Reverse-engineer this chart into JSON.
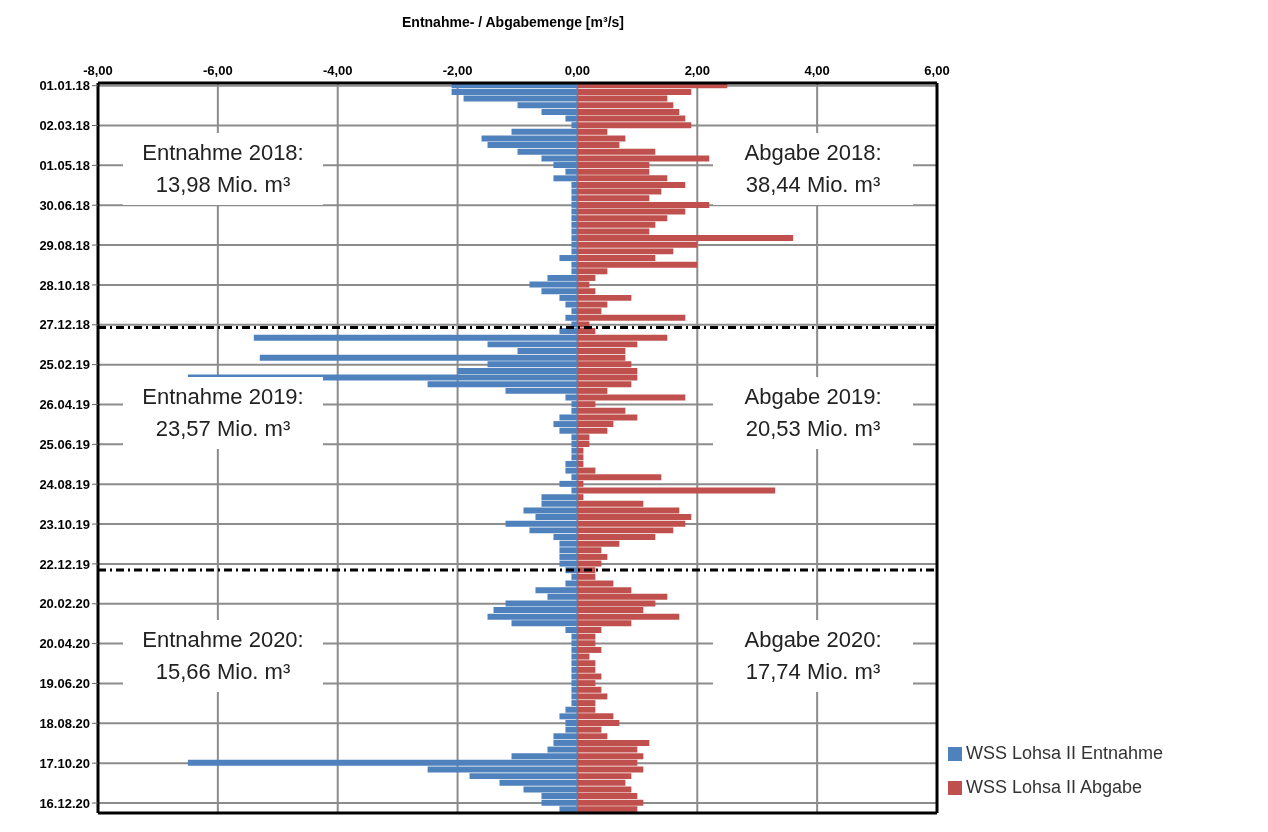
{
  "chart_data": {
    "type": "bar",
    "orientation": "horizontal",
    "xlabel": "Entnahme- / Abgabemenge [m³/s]",
    "x": [
      "2018-01-01",
      "2018-01-11",
      "2018-01-21",
      "2018-01-31",
      "2018-02-10",
      "2018-02-20",
      "2018-03-02",
      "2018-03-12",
      "2018-03-22",
      "2018-04-01",
      "2018-04-11",
      "2018-04-21",
      "2018-05-01",
      "2018-05-11",
      "2018-05-21",
      "2018-05-31",
      "2018-06-10",
      "2018-06-20",
      "2018-06-30",
      "2018-07-10",
      "2018-07-20",
      "2018-07-30",
      "2018-08-09",
      "2018-08-19",
      "2018-08-29",
      "2018-09-08",
      "2018-09-18",
      "2018-09-28",
      "2018-10-08",
      "2018-10-18",
      "2018-10-28",
      "2018-11-07",
      "2018-11-17",
      "2018-11-27",
      "2018-12-07",
      "2018-12-17",
      "2018-12-27",
      "2019-01-06",
      "2019-01-16",
      "2019-01-26",
      "2019-02-05",
      "2019-02-15",
      "2019-02-25",
      "2019-03-07",
      "2019-03-17",
      "2019-03-27",
      "2019-04-06",
      "2019-04-16",
      "2019-04-26",
      "2019-05-06",
      "2019-05-16",
      "2019-05-26",
      "2019-06-05",
      "2019-06-15",
      "2019-06-25",
      "2019-07-05",
      "2019-07-15",
      "2019-07-25",
      "2019-08-04",
      "2019-08-14",
      "2019-08-24",
      "2019-09-03",
      "2019-09-13",
      "2019-09-23",
      "2019-10-03",
      "2019-10-13",
      "2019-10-23",
      "2019-11-02",
      "2019-11-12",
      "2019-11-22",
      "2019-12-02",
      "2019-12-12",
      "2019-12-22",
      "2020-01-01",
      "2020-01-11",
      "2020-01-21",
      "2020-01-31",
      "2020-02-10",
      "2020-02-20",
      "2020-03-01",
      "2020-03-11",
      "2020-03-21",
      "2020-03-31",
      "2020-04-10",
      "2020-04-20",
      "2020-04-30",
      "2020-05-10",
      "2020-05-20",
      "2020-05-30",
      "2020-06-09",
      "2020-06-19",
      "2020-06-29",
      "2020-07-09",
      "2020-07-19",
      "2020-07-29",
      "2020-08-08",
      "2020-08-18",
      "2020-08-28",
      "2020-09-07",
      "2020-09-17",
      "2020-09-27",
      "2020-10-07",
      "2020-10-17",
      "2020-10-27",
      "2020-11-06",
      "2020-11-16",
      "2020-11-26",
      "2020-12-06",
      "2020-12-16",
      "2020-12-26"
    ],
    "series": [
      {
        "name": "WSS Lohsa II Entnahme",
        "color": "#4f81bd",
        "values": [
          -2.1,
          -2.1,
          -1.9,
          -1.0,
          -0.6,
          -0.2,
          -0.1,
          -1.1,
          -1.6,
          -1.5,
          -1.0,
          -0.6,
          -0.4,
          -0.2,
          -0.4,
          -0.1,
          -0.1,
          -0.1,
          -0.1,
          -0.1,
          -0.1,
          -0.1,
          -0.1,
          -0.1,
          -0.1,
          -0.1,
          -0.3,
          -0.1,
          -0.1,
          -0.5,
          -0.8,
          -0.6,
          -0.3,
          -0.2,
          -0.1,
          -0.2,
          -0.1,
          -0.3,
          -5.4,
          -1.5,
          -1.0,
          -5.3,
          -1.5,
          -2.0,
          -6.5,
          -2.5,
          -1.2,
          -0.2,
          -0.1,
          -0.1,
          -0.3,
          -0.4,
          -0.3,
          -0.1,
          -0.1,
          -0.1,
          -0.1,
          -0.2,
          -0.2,
          -0.1,
          -0.3,
          -0.1,
          -0.6,
          -0.6,
          -0.9,
          -0.7,
          -1.2,
          -0.8,
          -0.4,
          -0.3,
          -0.3,
          -0.3,
          -0.3,
          -0.2,
          -0.1,
          -0.2,
          -0.7,
          -0.5,
          -1.2,
          -1.4,
          -1.5,
          -1.1,
          -0.2,
          -0.1,
          -0.1,
          -0.1,
          -0.1,
          -0.1,
          -0.1,
          -0.1,
          -0.1,
          -0.1,
          -0.1,
          -0.1,
          -0.2,
          -0.3,
          -0.2,
          -0.2,
          -0.4,
          -0.4,
          -0.5,
          -1.1,
          -6.5,
          -2.5,
          -1.8,
          -1.3,
          -0.9,
          -0.6,
          -0.6,
          -0.3
        ]
      },
      {
        "name": "WSS Lohsa II Abgabe",
        "color": "#c0504d",
        "values": [
          2.5,
          1.9,
          1.5,
          1.6,
          1.7,
          1.8,
          1.9,
          0.5,
          0.8,
          0.7,
          1.3,
          2.2,
          1.2,
          1.2,
          1.5,
          1.8,
          1.4,
          1.2,
          2.2,
          1.8,
          1.5,
          1.3,
          1.2,
          3.6,
          2.0,
          1.6,
          1.3,
          2.0,
          0.5,
          0.3,
          0.2,
          0.3,
          0.9,
          0.5,
          0.4,
          1.8,
          0.2,
          0.3,
          1.5,
          1.0,
          0.8,
          0.8,
          0.9,
          1.0,
          1.0,
          0.9,
          0.5,
          1.8,
          0.3,
          0.8,
          1.0,
          0.6,
          0.5,
          0.2,
          0.2,
          0.1,
          0.1,
          0.1,
          0.3,
          1.4,
          0.1,
          3.3,
          0.1,
          1.1,
          1.7,
          1.9,
          1.8,
          1.6,
          1.3,
          0.7,
          0.4,
          0.5,
          0.4,
          0.3,
          0.3,
          0.6,
          0.9,
          1.5,
          1.3,
          1.1,
          1.7,
          0.9,
          0.4,
          0.3,
          0.3,
          0.4,
          0.2,
          0.3,
          0.3,
          0.4,
          0.3,
          0.4,
          0.5,
          0.3,
          0.3,
          0.6,
          0.7,
          0.4,
          0.5,
          1.2,
          1.0,
          1.1,
          1.0,
          1.1,
          0.9,
          0.8,
          0.9,
          1.0,
          1.1,
          1.0
        ]
      }
    ],
    "xlim": [
      -8,
      6
    ],
    "xticks": [
      {
        "value": -8,
        "label": "-8,00"
      },
      {
        "value": -6,
        "label": "-6,00"
      },
      {
        "value": -4,
        "label": "-4,00"
      },
      {
        "value": -2,
        "label": "-2,00"
      },
      {
        "value": 0,
        "label": "0,00"
      },
      {
        "value": 2,
        "label": "2,00"
      },
      {
        "value": 4,
        "label": "4,00"
      },
      {
        "value": 6,
        "label": "6,00"
      }
    ],
    "stacked": true,
    "ylim": [
      "2020-12-31",
      "2017-12-28"
    ],
    "yticks": [
      {
        "value": "2018-01-01",
        "label": "01.01.18"
      },
      {
        "value": "2018-03-02",
        "label": "02.03.18"
      },
      {
        "value": "2018-05-01",
        "label": "01.05.18"
      },
      {
        "value": "2018-06-30",
        "label": "30.06.18"
      },
      {
        "value": "2018-08-29",
        "label": "29.08.18"
      },
      {
        "value": "2018-10-28",
        "label": "28.10.18"
      },
      {
        "value": "2018-12-27",
        "label": "27.12.18"
      },
      {
        "value": "2019-02-25",
        "label": "25.02.19"
      },
      {
        "value": "2019-04-26",
        "label": "26.04.19"
      },
      {
        "value": "2019-06-25",
        "label": "25.06.19"
      },
      {
        "value": "2019-08-24",
        "label": "24.08.19"
      },
      {
        "value": "2019-10-23",
        "label": "23.10.19"
      },
      {
        "value": "2019-12-22",
        "label": "22.12.19"
      },
      {
        "value": "2020-02-20",
        "label": "20.02.20"
      },
      {
        "value": "2020-04-20",
        "label": "20.04.20"
      },
      {
        "value": "2020-06-19",
        "label": "19.06.20"
      },
      {
        "value": "2020-08-18",
        "label": "18.08.20"
      },
      {
        "value": "2020-10-17",
        "label": "17.10.20"
      },
      {
        "value": "2020-12-16",
        "label": "16.12.20"
      }
    ],
    "ref_lines": [
      {
        "axis": "y",
        "value": "2018-12-31",
        "color": "#000000",
        "line_style": "dashed"
      },
      {
        "axis": "y",
        "value": "2019-12-31",
        "color": "#000000",
        "line_style": "dashed"
      }
    ],
    "annotations": [
      "Entnahme 2018:\n13,98 Mio. m³",
      "Abgabe 2018:\n38,44 Mio. m³",
      "Entnahme 2019:\n23,57 Mio. m³",
      "Abgabe 2019:\n20,53 Mio. m³",
      "Entnahme 2020:\n15,66 Mio. m³",
      "Abgabe 2020:\n17,74 Mio. m³"
    ],
    "grid": true,
    "legend": "bottom right"
  }
}
